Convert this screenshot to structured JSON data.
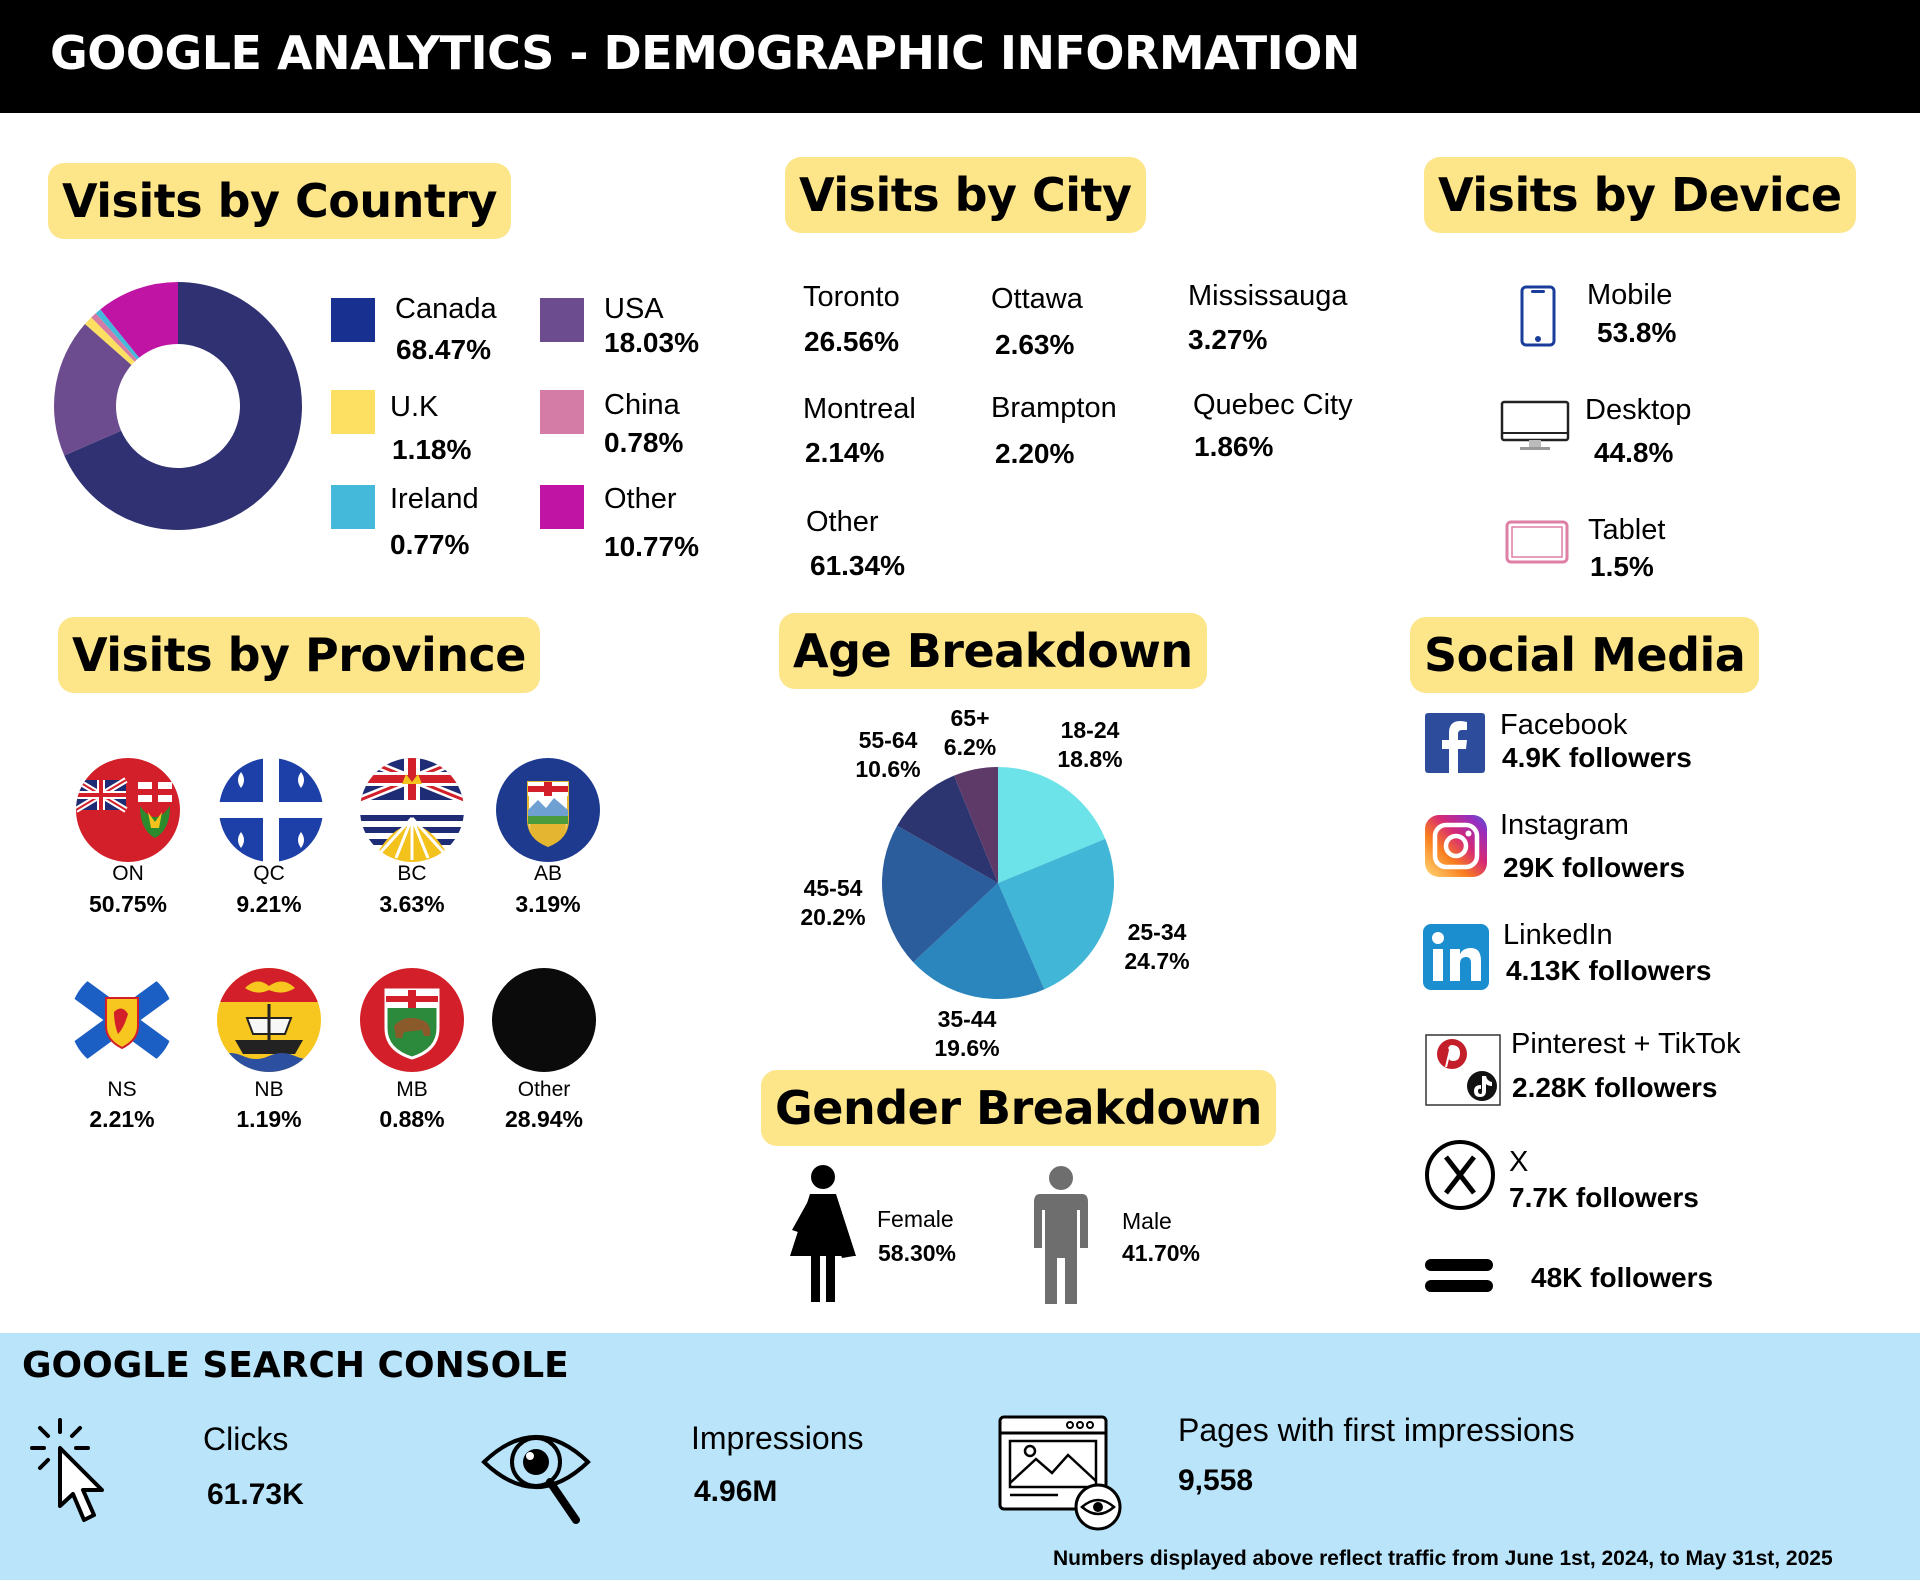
{
  "title": "GOOGLE ANALYTICS - DEMOGRAPHIC INFORMATION",
  "colors": {
    "accent_pill": "#fde58a",
    "footer_bg": "#b9e4fa",
    "header_bg": "#000000"
  },
  "country": {
    "heading": "Visits by Country",
    "items": [
      {
        "name": "Canada",
        "value": "68.47%",
        "color": "#2f3172",
        "swatch": "#183090"
      },
      {
        "name": "USA",
        "value": "18.03%",
        "color": "#6c4b8e",
        "swatch": "#6c4b8e"
      },
      {
        "name": "U.K",
        "value": "1.18%",
        "color": "#fde062",
        "swatch": "#fde062"
      },
      {
        "name": "China",
        "value": "0.78%",
        "color": "#d47ca6",
        "swatch": "#d47ca6"
      },
      {
        "name": "Ireland",
        "value": "0.77%",
        "color": "#45b9d9",
        "swatch": "#45b9d9"
      },
      {
        "name": "Other",
        "value": "10.77%",
        "color": "#c014a4",
        "swatch": "#c014a4"
      }
    ]
  },
  "city": {
    "heading": "Visits by City",
    "items": [
      {
        "name": "Toronto",
        "value": "26.56%"
      },
      {
        "name": "Ottawa",
        "value": "2.63%"
      },
      {
        "name": "Mississauga",
        "value": "3.27%"
      },
      {
        "name": "Montreal",
        "value": "2.14%"
      },
      {
        "name": "Brampton",
        "value": "2.20%"
      },
      {
        "name": "Quebec City",
        "value": "1.86%"
      },
      {
        "name": "Other",
        "value": "61.34%"
      }
    ]
  },
  "device": {
    "heading": "Visits by Device",
    "items": [
      {
        "name": "Mobile",
        "value": "53.8%",
        "icon": "mobile-phone-icon"
      },
      {
        "name": "Desktop",
        "value": "44.8%",
        "icon": "desktop-monitor-icon"
      },
      {
        "name": "Tablet",
        "value": "1.5%",
        "icon": "tablet-icon"
      }
    ]
  },
  "province": {
    "heading": "Visits by Province",
    "items": [
      {
        "code": "ON",
        "value": "50.75%",
        "icon": "ontario-flag-icon"
      },
      {
        "code": "QC",
        "value": "9.21%",
        "icon": "quebec-flag-icon"
      },
      {
        "code": "BC",
        "value": "3.63%",
        "icon": "british-columbia-flag-icon"
      },
      {
        "code": "AB",
        "value": "3.19%",
        "icon": "alberta-flag-icon"
      },
      {
        "code": "NS",
        "value": "2.21%",
        "icon": "nova-scotia-flag-icon"
      },
      {
        "code": "NB",
        "value": "1.19%",
        "icon": "new-brunswick-flag-icon"
      },
      {
        "code": "MB",
        "value": "0.88%",
        "icon": "manitoba-flag-icon"
      },
      {
        "code": "Other",
        "value": "28.94%",
        "icon": "black-circle-icon"
      }
    ]
  },
  "age": {
    "heading": "Age Breakdown",
    "slices": [
      {
        "range": "18-24",
        "pct": "18.8%",
        "value": 18.8,
        "color": "#6ce3e8"
      },
      {
        "range": "25-34",
        "pct": "24.7%",
        "value": 24.7,
        "color": "#41b6d6"
      },
      {
        "range": "35-44",
        "pct": "19.6%",
        "value": 19.6,
        "color": "#2a86bd"
      },
      {
        "range": "45-54",
        "pct": "20.2%",
        "value": 20.2,
        "color": "#2b5c9c"
      },
      {
        "range": "55-64",
        "pct": "10.6%",
        "value": 10.6,
        "color": "#2d3570"
      },
      {
        "range": "65+",
        "pct": "6.2%",
        "value": 6.2,
        "color": "#5e3a69"
      }
    ]
  },
  "gender": {
    "heading": "Gender Breakdown",
    "female": {
      "label": "Female",
      "value": "58.30%"
    },
    "male": {
      "label": "Male",
      "value": "41.70%"
    }
  },
  "social": {
    "heading": "Social Media",
    "items": [
      {
        "name": "Facebook",
        "followers": "4.9K followers",
        "icon": "facebook-icon"
      },
      {
        "name": "Instagram",
        "followers": "29K followers",
        "icon": "instagram-icon"
      },
      {
        "name": "LinkedIn",
        "followers": "4.13K followers",
        "icon": "linkedin-icon"
      },
      {
        "name": "Pinterest + TikTok",
        "followers": "2.28K followers",
        "icon": "pinterest-tiktok-icon"
      },
      {
        "name": "X",
        "followers": "7.7K followers",
        "icon": "x-icon"
      },
      {
        "name": "",
        "followers": "48K followers",
        "icon": "threads-equals-icon"
      }
    ]
  },
  "search_console": {
    "heading": "GOOGLE SEARCH CONSOLE",
    "clicks": {
      "label": "Clicks",
      "value": "61.73K"
    },
    "impressions": {
      "label": "Impressions",
      "value": "4.96M"
    },
    "pages": {
      "label": "Pages with first impressions",
      "value": "9,558"
    },
    "note": "Numbers displayed above reflect traffic from June 1st, 2024, to May 31st, 2025"
  }
}
